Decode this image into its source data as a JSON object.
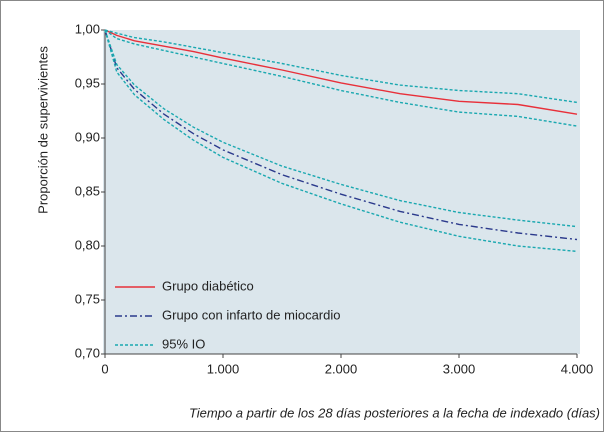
{
  "chart_data": {
    "type": "line",
    "y_label": "Proporción de supervivientes",
    "x_label": "Tiempo a partir de los 28 días posteriores a la fecha de indexado (días)",
    "x": [
      0,
      100,
      250,
      500,
      750,
      1000,
      1500,
      2000,
      2500,
      3000,
      3500,
      4000
    ],
    "series": [
      {
        "name": "Grupo diabético",
        "color": "#e8303a",
        "dash": "solid",
        "values": [
          1.0,
          0.995,
          0.99,
          0.985,
          0.98,
          0.974,
          0.963,
          0.951,
          0.941,
          0.934,
          0.931,
          0.922
        ]
      },
      {
        "name": "Grupo con infarto de miocardio",
        "color": "#2b3a8c",
        "dash": "dashdot",
        "values": [
          1.0,
          0.965,
          0.945,
          0.922,
          0.904,
          0.889,
          0.866,
          0.848,
          0.832,
          0.82,
          0.812,
          0.806
        ]
      },
      {
        "name": "95% IO",
        "color": "#1aa8b0",
        "dash": "dotted",
        "ci": [
          {
            "upper": [
              1.0,
              0.997,
              0.993,
              0.989,
              0.984,
              0.979,
              0.969,
              0.958,
              0.949,
              0.944,
              0.941,
              0.933
            ],
            "lower": [
              1.0,
              0.992,
              0.987,
              0.981,
              0.975,
              0.969,
              0.957,
              0.944,
              0.933,
              0.924,
              0.92,
              0.911
            ]
          },
          {
            "upper": [
              1.0,
              0.968,
              0.949,
              0.927,
              0.91,
              0.896,
              0.874,
              0.857,
              0.842,
              0.831,
              0.824,
              0.818
            ],
            "lower": [
              1.0,
              0.961,
              0.94,
              0.917,
              0.898,
              0.882,
              0.858,
              0.839,
              0.822,
              0.809,
              0.8,
              0.795
            ]
          }
        ]
      }
    ],
    "xlim": [
      0,
      4000
    ],
    "xticks": [
      0,
      {
        "value": 1000,
        "label": "1.000"
      },
      {
        "value": 2000,
        "label": "2.000"
      },
      {
        "value": 3000,
        "label": "3.000"
      },
      {
        "value": 4000,
        "label": "4.000"
      }
    ],
    "ylim": [
      0.7,
      1.0
    ],
    "yticks": [
      {
        "value": 0.7,
        "label": "0,70"
      },
      {
        "value": 0.75,
        "label": "0,75"
      },
      {
        "value": 0.8,
        "label": "0,80"
      },
      {
        "value": 0.85,
        "label": "0,85"
      },
      {
        "value": 0.9,
        "label": "0,90"
      },
      {
        "value": 0.95,
        "label": "0,95"
      },
      {
        "value": 1.0,
        "label": "1,00"
      }
    ],
    "legend": "lower-left"
  }
}
